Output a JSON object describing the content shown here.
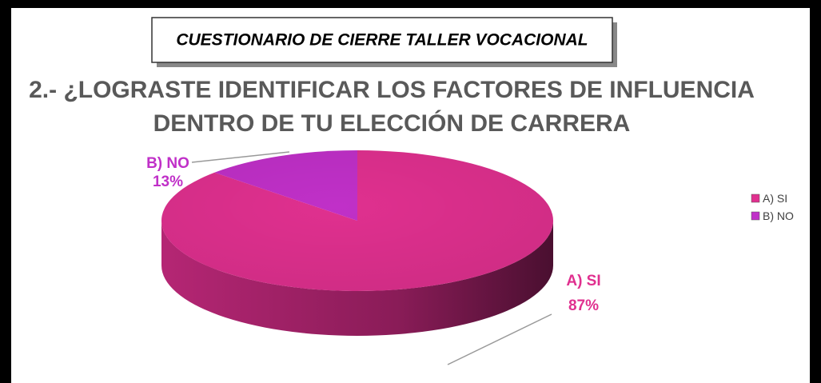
{
  "header": "CUESTIONARIO DE CIERRE TALLER VOCACIONAL",
  "chart_data": {
    "type": "pie",
    "title": [
      "2.- ¿LOGRASTE IDENTIFICAR LOS FACTORES DE INFLUENCIA",
      "DENTRO DE TU ELECCIÓN DE CARRERA"
    ],
    "categories": [
      "A) SI",
      "B) NO"
    ],
    "values": [
      87,
      13
    ],
    "value_labels": [
      "87%",
      "13%"
    ],
    "colors": [
      "#e0308f",
      "#c030c8"
    ],
    "legend": "right"
  }
}
